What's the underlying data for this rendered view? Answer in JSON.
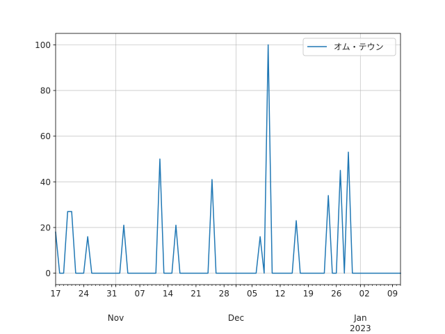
{
  "chart_data": {
    "type": "line",
    "legend_position": "top-right",
    "grid": true,
    "colors": {
      "series": "#1f77b4",
      "grid": "#b0b0b0",
      "axis": "#000000"
    },
    "xlim": [
      "2022-10-17",
      "2023-01-11"
    ],
    "ylim": [
      -5,
      105
    ],
    "y_ticks": [
      0,
      20,
      40,
      60,
      80,
      100
    ],
    "x_ticks": [
      {
        "date": "2022-10-17",
        "label": "17",
        "sub": ""
      },
      {
        "date": "2022-10-24",
        "label": "24",
        "sub": ""
      },
      {
        "date": "2022-10-31",
        "label": "31",
        "sub": ""
      },
      {
        "date": "2022-11-01",
        "label": "",
        "sub": "Nov"
      },
      {
        "date": "2022-11-07",
        "label": "07",
        "sub": ""
      },
      {
        "date": "2022-11-14",
        "label": "14",
        "sub": ""
      },
      {
        "date": "2022-11-21",
        "label": "21",
        "sub": ""
      },
      {
        "date": "2022-11-28",
        "label": "28",
        "sub": ""
      },
      {
        "date": "2022-12-01",
        "label": "",
        "sub": "Dec"
      },
      {
        "date": "2022-12-05",
        "label": "05",
        "sub": ""
      },
      {
        "date": "2022-12-12",
        "label": "12",
        "sub": ""
      },
      {
        "date": "2022-12-19",
        "label": "19",
        "sub": ""
      },
      {
        "date": "2022-12-26",
        "label": "26",
        "sub": ""
      },
      {
        "date": "2023-01-01",
        "label": "",
        "sub": "Jan\n2023"
      },
      {
        "date": "2023-01-02",
        "label": "02",
        "sub": ""
      },
      {
        "date": "2023-01-09",
        "label": "09",
        "sub": ""
      }
    ],
    "series": [
      {
        "name": "オム・テウン",
        "points": [
          [
            "2022-10-17",
            18
          ],
          [
            "2022-10-18",
            0
          ],
          [
            "2022-10-19",
            0
          ],
          [
            "2022-10-20",
            27
          ],
          [
            "2022-10-21",
            27
          ],
          [
            "2022-10-22",
            0
          ],
          [
            "2022-10-23",
            0
          ],
          [
            "2022-10-24",
            0
          ],
          [
            "2022-10-25",
            16
          ],
          [
            "2022-10-26",
            0
          ],
          [
            "2022-10-27",
            0
          ],
          [
            "2022-10-28",
            0
          ],
          [
            "2022-10-29",
            0
          ],
          [
            "2022-10-30",
            0
          ],
          [
            "2022-10-31",
            0
          ],
          [
            "2022-11-01",
            0
          ],
          [
            "2022-11-02",
            0
          ],
          [
            "2022-11-03",
            21
          ],
          [
            "2022-11-04",
            0
          ],
          [
            "2022-11-05",
            0
          ],
          [
            "2022-11-06",
            0
          ],
          [
            "2022-11-07",
            0
          ],
          [
            "2022-11-08",
            0
          ],
          [
            "2022-11-09",
            0
          ],
          [
            "2022-11-10",
            0
          ],
          [
            "2022-11-11",
            0
          ],
          [
            "2022-11-12",
            50
          ],
          [
            "2022-11-13",
            0
          ],
          [
            "2022-11-14",
            0
          ],
          [
            "2022-11-15",
            0
          ],
          [
            "2022-11-16",
            21
          ],
          [
            "2022-11-17",
            0
          ],
          [
            "2022-11-18",
            0
          ],
          [
            "2022-11-19",
            0
          ],
          [
            "2022-11-20",
            0
          ],
          [
            "2022-11-21",
            0
          ],
          [
            "2022-11-22",
            0
          ],
          [
            "2022-11-23",
            0
          ],
          [
            "2022-11-24",
            0
          ],
          [
            "2022-11-25",
            41
          ],
          [
            "2022-11-26",
            0
          ],
          [
            "2022-11-27",
            0
          ],
          [
            "2022-11-28",
            0
          ],
          [
            "2022-11-29",
            0
          ],
          [
            "2022-11-30",
            0
          ],
          [
            "2022-12-01",
            0
          ],
          [
            "2022-12-02",
            0
          ],
          [
            "2022-12-03",
            0
          ],
          [
            "2022-12-04",
            0
          ],
          [
            "2022-12-05",
            0
          ],
          [
            "2022-12-06",
            0
          ],
          [
            "2022-12-07",
            16
          ],
          [
            "2022-12-08",
            0
          ],
          [
            "2022-12-09",
            100
          ],
          [
            "2022-12-10",
            0
          ],
          [
            "2022-12-11",
            0
          ],
          [
            "2022-12-12",
            0
          ],
          [
            "2022-12-13",
            0
          ],
          [
            "2022-12-14",
            0
          ],
          [
            "2022-12-15",
            0
          ],
          [
            "2022-12-16",
            23
          ],
          [
            "2022-12-17",
            0
          ],
          [
            "2022-12-18",
            0
          ],
          [
            "2022-12-19",
            0
          ],
          [
            "2022-12-20",
            0
          ],
          [
            "2022-12-21",
            0
          ],
          [
            "2022-12-22",
            0
          ],
          [
            "2022-12-23",
            0
          ],
          [
            "2022-12-24",
            34
          ],
          [
            "2022-12-25",
            0
          ],
          [
            "2022-12-26",
            0
          ],
          [
            "2022-12-27",
            45
          ],
          [
            "2022-12-28",
            0
          ],
          [
            "2022-12-29",
            53
          ],
          [
            "2022-12-30",
            0
          ],
          [
            "2022-12-31",
            0
          ],
          [
            "2023-01-01",
            0
          ],
          [
            "2023-01-02",
            0
          ],
          [
            "2023-01-03",
            0
          ],
          [
            "2023-01-04",
            0
          ],
          [
            "2023-01-05",
            0
          ],
          [
            "2023-01-06",
            0
          ],
          [
            "2023-01-07",
            0
          ],
          [
            "2023-01-08",
            0
          ],
          [
            "2023-01-09",
            0
          ],
          [
            "2023-01-10",
            0
          ],
          [
            "2023-01-11",
            0
          ]
        ]
      }
    ]
  }
}
